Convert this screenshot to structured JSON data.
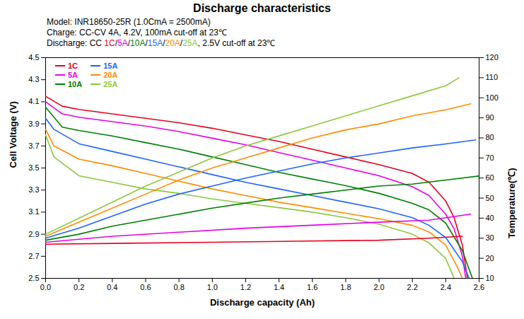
{
  "chart_data": {
    "type": "line",
    "title": "Discharge characteristics",
    "subtitle": [
      "Model: INR18650-25R (1.0CmA = 2500mA)",
      "Charge: CC-CV 4A, 4.2V, 100mA cut-off at 23℃",
      [
        "Discharge: CC ",
        "1C",
        "/",
        "5A",
        "/",
        "10A",
        "/",
        "15A",
        "/",
        "20A",
        "/",
        "25A",
        ", 2.5V cut-off at 23℃"
      ]
    ],
    "x_label": "Discharge capacity (Ah)",
    "y_label": "Cell Voltage (V)",
    "y2_label": "Temperature(℃)",
    "xlim": [
      0,
      2.6
    ],
    "xticks": [
      {
        "value": 0,
        "label": "0.0"
      },
      0.2,
      0.4,
      0.6,
      0.8,
      {
        "value": 1,
        "label": "1.0"
      },
      1.2,
      1.4,
      1.6,
      1.8,
      {
        "value": 2,
        "label": "2.0"
      },
      2.2,
      2.4,
      2.6
    ],
    "ylim": [
      2.5,
      4.5
    ],
    "yticks": [
      2.5,
      2.7,
      2.9,
      3.1,
      3.3,
      3.5,
      3.7,
      3.9,
      4.1,
      4.3,
      4.5
    ],
    "y2lim": [
      10,
      120
    ],
    "y2ticks": [
      10,
      20,
      30,
      40,
      50,
      60,
      70,
      80,
      90,
      100,
      110,
      120
    ],
    "grid": false,
    "legend": "top-left",
    "series": [
      {
        "name": "1C",
        "color": "#e8001c",
        "x": [
          0,
          0.1,
          0.2,
          0.4,
          0.6,
          0.8,
          1.0,
          1.2,
          1.4,
          1.6,
          1.8,
          2.0,
          2.2,
          2.3,
          2.4,
          2.45,
          2.5,
          2.53
        ],
        "values": [
          4.15,
          4.06,
          4.03,
          3.99,
          3.95,
          3.91,
          3.86,
          3.8,
          3.74,
          3.67,
          3.6,
          3.53,
          3.45,
          3.37,
          3.2,
          3.05,
          2.8,
          2.5
        ]
      },
      {
        "name": "5A",
        "color": "#e600e6",
        "x": [
          0,
          0.1,
          0.2,
          0.4,
          0.6,
          0.8,
          1.0,
          1.2,
          1.4,
          1.6,
          1.8,
          2.0,
          2.2,
          2.3,
          2.4,
          2.45,
          2.5,
          2.52
        ],
        "values": [
          4.1,
          3.99,
          3.96,
          3.92,
          3.88,
          3.83,
          3.77,
          3.71,
          3.64,
          3.57,
          3.5,
          3.43,
          3.33,
          3.25,
          3.08,
          2.95,
          2.7,
          2.5
        ]
      },
      {
        "name": "10A",
        "color": "#008000",
        "x": [
          0,
          0.1,
          0.2,
          0.4,
          0.6,
          0.8,
          1.0,
          1.2,
          1.4,
          1.6,
          1.8,
          2.0,
          2.2,
          2.3,
          2.4,
          2.5,
          2.56
        ],
        "values": [
          4.05,
          3.87,
          3.84,
          3.79,
          3.73,
          3.67,
          3.6,
          3.53,
          3.46,
          3.4,
          3.34,
          3.27,
          3.18,
          3.12,
          3.0,
          2.75,
          2.5
        ]
      },
      {
        "name": "15A",
        "color": "#1e64ff",
        "x": [
          0,
          0.05,
          0.2,
          0.4,
          0.6,
          0.8,
          1.0,
          1.2,
          1.4,
          1.6,
          1.8,
          2.0,
          2.2,
          2.3,
          2.4,
          2.5,
          2.54
        ],
        "values": [
          3.95,
          3.85,
          3.72,
          3.65,
          3.58,
          3.51,
          3.44,
          3.37,
          3.31,
          3.25,
          3.19,
          3.13,
          3.05,
          2.98,
          2.87,
          2.65,
          2.5
        ]
      },
      {
        "name": "20A",
        "color": "#ff8c00",
        "x": [
          0,
          0.05,
          0.2,
          0.4,
          0.6,
          0.8,
          1.0,
          1.2,
          1.4,
          1.6,
          1.8,
          2.0,
          2.2,
          2.3,
          2.4,
          2.47,
          2.5
        ],
        "values": [
          3.85,
          3.7,
          3.58,
          3.52,
          3.45,
          3.38,
          3.31,
          3.25,
          3.19,
          3.14,
          3.09,
          3.04,
          2.98,
          2.92,
          2.8,
          2.6,
          2.5
        ]
      },
      {
        "name": "25A",
        "color": "#8cc83c",
        "x": [
          0,
          0.05,
          0.2,
          0.4,
          0.6,
          0.8,
          1.0,
          1.2,
          1.4,
          1.6,
          1.8,
          2.0,
          2.2,
          2.3,
          2.4,
          2.45
        ],
        "values": [
          3.8,
          3.6,
          3.43,
          3.37,
          3.31,
          3.27,
          3.22,
          3.18,
          3.14,
          3.1,
          3.05,
          2.99,
          2.9,
          2.82,
          2.68,
          2.5
        ]
      },
      {
        "name": "1C",
        "color": "#e8001c",
        "axis": "y2",
        "x": [
          0,
          0.5,
          1.0,
          1.5,
          2.0,
          2.3,
          2.5
        ],
        "values": [
          27,
          27.5,
          28,
          28.5,
          29,
          30,
          31
        ]
      },
      {
        "name": "5A",
        "color": "#e600e6",
        "axis": "y2",
        "x": [
          0,
          0.4,
          0.8,
          1.2,
          1.6,
          2.0,
          2.3,
          2.55
        ],
        "values": [
          28,
          31,
          33,
          35,
          36.5,
          38,
          39,
          42
        ]
      },
      {
        "name": "10A",
        "color": "#008000",
        "axis": "y2",
        "x": [
          0,
          0.2,
          0.4,
          0.6,
          0.8,
          1.0,
          1.2,
          1.4,
          1.6,
          1.8,
          2.0,
          2.2,
          2.4,
          2.6
        ],
        "values": [
          29,
          32,
          36,
          39,
          42,
          45,
          47.5,
          50,
          52,
          54,
          56,
          57,
          59,
          61
        ]
      },
      {
        "name": "15A",
        "color": "#1e64ff",
        "axis": "y2",
        "x": [
          0,
          0.2,
          0.4,
          0.6,
          0.8,
          1.0,
          1.2,
          1.4,
          1.6,
          1.8,
          2.0,
          2.2,
          2.4,
          2.58
        ],
        "values": [
          30,
          35,
          41,
          47,
          52,
          56,
          60,
          63.5,
          67,
          70,
          72.5,
          75,
          77,
          79
        ]
      },
      {
        "name": "20A",
        "color": "#ff8c00",
        "axis": "y2",
        "x": [
          0,
          0.2,
          0.4,
          0.6,
          0.8,
          1.0,
          1.2,
          1.4,
          1.6,
          1.8,
          2.0,
          2.2,
          2.4,
          2.55
        ],
        "values": [
          31,
          38,
          45,
          52,
          59,
          65,
          70,
          75,
          80,
          84,
          87,
          91,
          94,
          97
        ]
      },
      {
        "name": "25A",
        "color": "#8cc83c",
        "axis": "y2",
        "x": [
          0,
          0.2,
          0.4,
          0.6,
          0.8,
          1.0,
          1.2,
          1.4,
          1.6,
          1.8,
          2.0,
          2.2,
          2.4,
          2.48
        ],
        "values": [
          32,
          40,
          48,
          56,
          63,
          70,
          76,
          81,
          86,
          91,
          96,
          101,
          106,
          110
        ]
      }
    ]
  }
}
